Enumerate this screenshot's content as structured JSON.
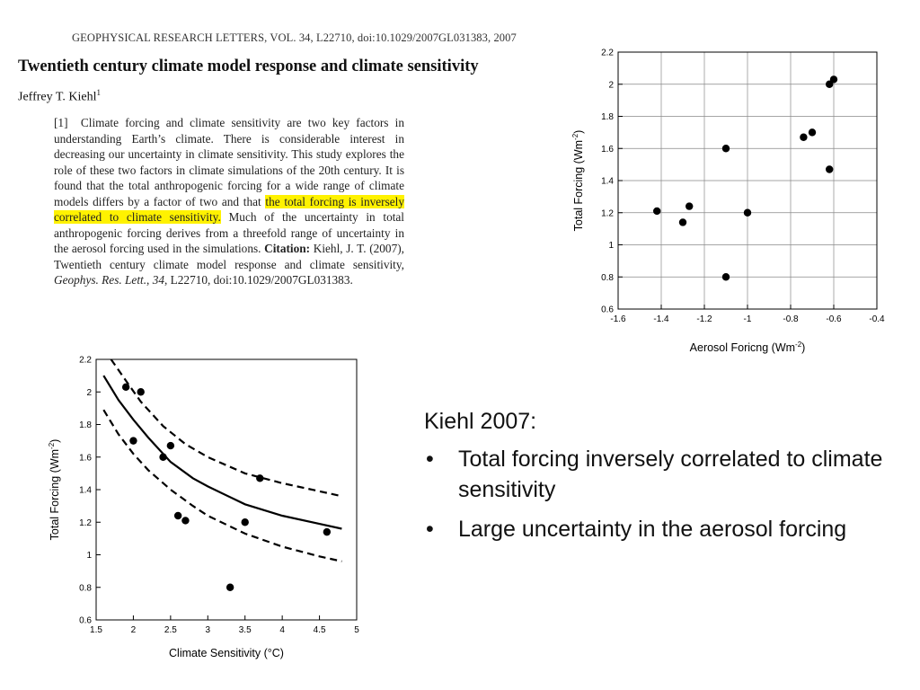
{
  "paper": {
    "journal": "GEOPHYSICAL RESEARCH LETTERS, VOL. 34, L22710, doi:10.1029/2007GL031383, 2007",
    "title": "Twentieth century climate model response and climate sensitivity",
    "author": "Jeffrey T. Kiehl",
    "author_sup": "1",
    "abstract": {
      "para_num": "[1]",
      "part1": "Climate forcing and climate sensitivity are two key factors in understanding Earth’s climate. There is considerable interest in decreasing our uncertainty in climate sensitivity. This study explores the role of these two factors in climate simulations of the 20th century. It is found that the total anthropogenic forcing for a wide range of climate models differs by a factor of two and that",
      "highlight": "the total forcing is inversely correlated to climate sensitivity.",
      "part2": "Much of the uncertainty in total anthropogenic forcing derives from a threefold range of uncertainty in the aerosol forcing used in the simulations.",
      "citation_label": "Citation:",
      "citation_text": "Kiehl, J. T. (2007), Twentieth century climate model response and climate sensitivity,",
      "citation_journal": "Geophys. Res. Lett.",
      "citation_sep": ",",
      "citation_vol": "34",
      "citation_tail": ", L22710, doi:10.1029/2007GL031383."
    }
  },
  "slide": {
    "heading": "Kiehl 2007:",
    "bullet_char": "•",
    "bullets": [
      "Total forcing inversely correlated to climate sensitivity",
      "Large uncertainty in the aerosol forcing"
    ]
  },
  "chart_data": [
    {
      "type": "scatter",
      "xlabel": "Aerosol Foricng (Wm",
      "xlabel_sup": "-2",
      "xlabel_end": ")",
      "ylabel": "Total Forcing (Wm",
      "ylabel_sup": "-2",
      "ylabel_end": ")",
      "xlim": [
        -1.6,
        -0.4
      ],
      "ylim": [
        0.6,
        2.2
      ],
      "xticks": [
        "-1.6",
        "-1.4",
        "-1.2",
        "-1",
        "-0.8",
        "-0.6",
        "-0.4"
      ],
      "yticks": [
        "0.6",
        "0.8",
        "1",
        "1.2",
        "1.4",
        "1.6",
        "1.8",
        "2",
        "2.2"
      ],
      "grid": true,
      "color": "#000000",
      "points": [
        {
          "x": -1.42,
          "y": 1.21
        },
        {
          "x": -1.3,
          "y": 1.14
        },
        {
          "x": -1.27,
          "y": 1.24
        },
        {
          "x": -1.1,
          "y": 1.6
        },
        {
          "x": -1.0,
          "y": 1.2
        },
        {
          "x": -1.1,
          "y": 0.8
        },
        {
          "x": -0.74,
          "y": 1.67
        },
        {
          "x": -0.7,
          "y": 1.7
        },
        {
          "x": -0.62,
          "y": 2.0
        },
        {
          "x": -0.6,
          "y": 2.03
        },
        {
          "x": -0.62,
          "y": 1.47
        }
      ]
    },
    {
      "type": "scatter",
      "xlabel": "Climate Sensitivity (°C)",
      "ylabel": "Total Forcing (Wm",
      "ylabel_sup": "-2",
      "ylabel_end": ")",
      "xlim": [
        1.5,
        5
      ],
      "ylim": [
        0.6,
        2.2
      ],
      "xticks": [
        "1.5",
        "2",
        "2.5",
        "3",
        "3.5",
        "4",
        "4.5",
        "5"
      ],
      "yticks": [
        "0.6",
        "0.8",
        "1",
        "1.2",
        "1.4",
        "1.6",
        "1.8",
        "2",
        "2.2"
      ],
      "grid": false,
      "color": "#000000",
      "points": [
        {
          "x": 1.9,
          "y": 2.03
        },
        {
          "x": 2.0,
          "y": 1.7
        },
        {
          "x": 2.1,
          "y": 2.0
        },
        {
          "x": 2.4,
          "y": 1.6
        },
        {
          "x": 2.5,
          "y": 1.67
        },
        {
          "x": 2.6,
          "y": 1.24
        },
        {
          "x": 2.7,
          "y": 1.21
        },
        {
          "x": 3.3,
          "y": 0.8
        },
        {
          "x": 3.5,
          "y": 1.2
        },
        {
          "x": 3.7,
          "y": 1.47
        },
        {
          "x": 4.6,
          "y": 1.14
        }
      ],
      "curves": [
        {
          "style": "solid",
          "x": [
            1.6,
            1.8,
            2.0,
            2.2,
            2.5,
            2.8,
            3.0,
            3.5,
            4.0,
            4.5,
            4.8
          ],
          "y": [
            2.1,
            1.95,
            1.83,
            1.72,
            1.57,
            1.47,
            1.42,
            1.31,
            1.24,
            1.19,
            1.16
          ]
        },
        {
          "style": "dashed",
          "x": [
            1.7,
            1.9,
            2.1,
            2.4,
            2.7,
            3.0,
            3.5,
            4.0,
            4.5,
            4.8
          ],
          "y": [
            2.2,
            2.07,
            1.94,
            1.79,
            1.68,
            1.6,
            1.5,
            1.44,
            1.39,
            1.36
          ]
        },
        {
          "style": "dashed",
          "x": [
            1.6,
            1.8,
            2.0,
            2.2,
            2.5,
            2.8,
            3.0,
            3.5,
            4.0,
            4.5,
            4.8
          ],
          "y": [
            1.89,
            1.74,
            1.62,
            1.52,
            1.4,
            1.3,
            1.24,
            1.13,
            1.05,
            0.99,
            0.96
          ]
        }
      ]
    }
  ]
}
